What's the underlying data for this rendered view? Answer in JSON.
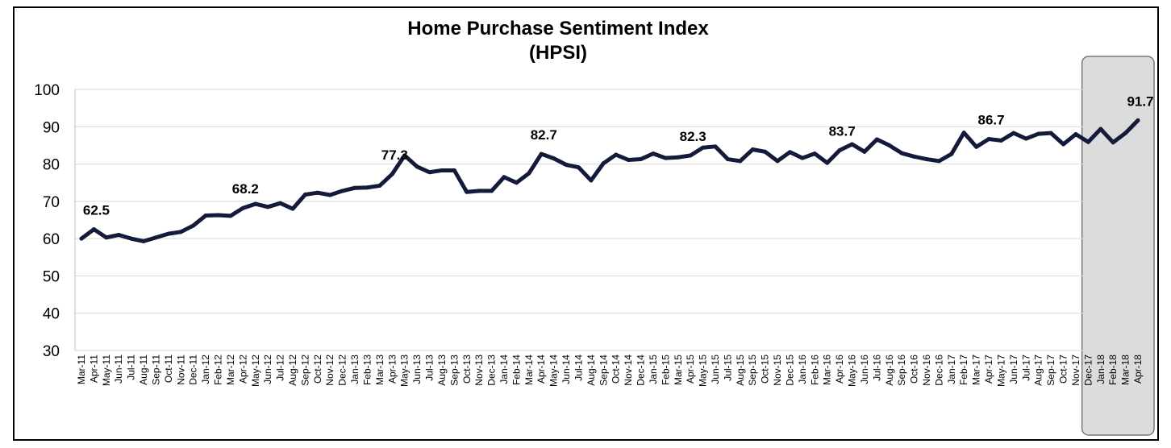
{
  "chart_data": {
    "type": "line",
    "title": "Home Purchase Sentiment Index",
    "subtitle": "(HPSI)",
    "xlabel": "",
    "ylabel": "",
    "ylim": [
      30,
      100
    ],
    "yticks": [
      30,
      40,
      50,
      60,
      70,
      80,
      90,
      100
    ],
    "grid": true,
    "line_color": "#141b3a",
    "highlight_color": "#dcdcdc",
    "highlight_range": [
      "Feb-18",
      "Apr-18"
    ],
    "x": [
      "Mar-11",
      "Apr-11",
      "May-11",
      "Jun-11",
      "Jul-11",
      "Aug-11",
      "Sep-11",
      "Oct-11",
      "Nov-11",
      "Dec-11",
      "Jan-12",
      "Feb-12",
      "Mar-12",
      "Apr-12",
      "May-12",
      "Jun-12",
      "Jul-12",
      "Aug-12",
      "Sep-12",
      "Oct-12",
      "Nov-12",
      "Dec-12",
      "Jan-13",
      "Feb-13",
      "Mar-13",
      "Apr-13",
      "May-13",
      "Jun-13",
      "Jul-13",
      "Aug-13",
      "Sep-13",
      "Oct-13",
      "Nov-13",
      "Dec-13",
      "Jan-14",
      "Feb-14",
      "Mar-14",
      "Apr-14",
      "May-14",
      "Jun-14",
      "Jul-14",
      "Aug-14",
      "Sep-14",
      "Oct-14",
      "Nov-14",
      "Dec-14",
      "Jan-15",
      "Feb-15",
      "Mar-15",
      "Apr-15",
      "May-15",
      "Jun-15",
      "Jul-15",
      "Aug-15",
      "Sep-15",
      "Oct-15",
      "Nov-15",
      "Dec-15",
      "Jan-16",
      "Feb-16",
      "Mar-16",
      "Apr-16",
      "May-16",
      "Jun-16",
      "Jul-16",
      "Aug-16",
      "Sep-16",
      "Oct-16",
      "Nov-16",
      "Dec-16",
      "Jan-17",
      "Feb-17",
      "Mar-17",
      "Apr-17",
      "May-17",
      "Jun-17",
      "Jul-17",
      "Aug-17",
      "Sep-17",
      "Oct-17",
      "Nov-17",
      "Dec-17",
      "Jan-18",
      "Feb-18",
      "Mar-18",
      "Apr-18"
    ],
    "values": [
      60.0,
      62.5,
      60.3,
      61.0,
      60.0,
      59.3,
      60.3,
      61.3,
      61.8,
      63.5,
      66.2,
      66.3,
      66.1,
      68.2,
      69.3,
      68.5,
      69.5,
      68.0,
      71.8,
      72.3,
      71.7,
      72.8,
      73.6,
      73.7,
      74.2,
      77.3,
      82.3,
      79.3,
      77.8,
      78.3,
      78.3,
      72.5,
      72.8,
      72.8,
      76.5,
      75.0,
      77.5,
      82.7,
      81.5,
      79.8,
      79.1,
      75.6,
      80.2,
      82.5,
      81.1,
      81.3,
      82.8,
      81.6,
      81.8,
      82.3,
      84.4,
      84.7,
      81.3,
      80.8,
      83.9,
      83.3,
      80.8,
      83.2,
      81.6,
      82.8,
      80.3,
      83.7,
      85.3,
      83.3,
      86.6,
      85.0,
      82.9,
      82.0,
      81.3,
      80.8,
      82.7,
      88.4,
      84.6,
      86.7,
      86.3,
      88.3,
      86.8,
      88.1,
      88.3,
      85.3,
      88.0,
      85.9,
      89.4,
      85.8,
      88.3,
      91.7
    ],
    "annotations": [
      {
        "x": "Apr-11",
        "label": "62.5"
      },
      {
        "x": "Apr-12",
        "label": "68.2"
      },
      {
        "x": "Apr-13",
        "label": "77.3"
      },
      {
        "x": "Apr-14",
        "label": "82.7"
      },
      {
        "x": "Apr-15",
        "label": "82.3"
      },
      {
        "x": "Apr-16",
        "label": "83.7"
      },
      {
        "x": "Apr-17",
        "label": "86.7"
      },
      {
        "x": "Apr-18",
        "label": "91.7"
      }
    ]
  }
}
